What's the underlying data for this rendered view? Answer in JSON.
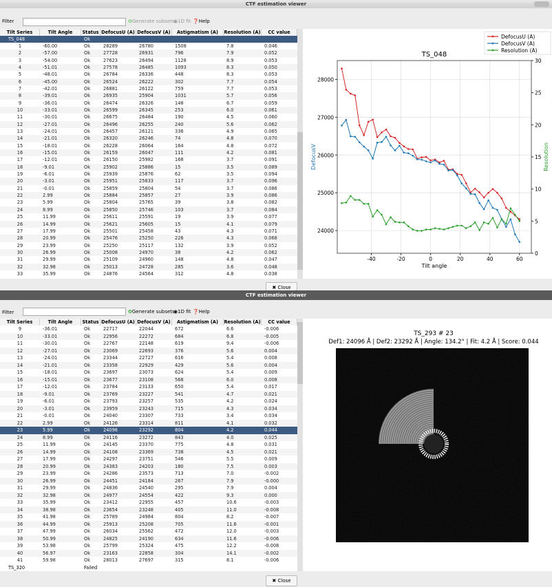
{
  "top": {
    "title": "CTF estimation viewer",
    "filter_label": "Filter",
    "toolbar": [
      "Generate subsets",
      "1D fit",
      "Help"
    ],
    "table": {
      "columns": [
        "Tilt Series",
        "Tilt Angle",
        "Status",
        "DefocusU (A)",
        "DefocusV (A)",
        "Astigmatism (A)",
        "Resolution (A)",
        "CC value"
      ],
      "group": "TS_048",
      "group_status": "Ok",
      "rows": [
        [
          "1",
          "-60.00",
          "Ok",
          "28289",
          "26780",
          "1508",
          "7.8",
          "0.046"
        ],
        [
          "2",
          "-57.00",
          "Ok",
          "27728",
          "26931",
          "796",
          "7.9",
          "0.052"
        ],
        [
          "3",
          "-54.00",
          "Ok",
          "27623",
          "26494",
          "1128",
          "8.9",
          "0.053"
        ],
        [
          "4",
          "-51.01",
          "Ok",
          "27578",
          "26485",
          "1093",
          "8.3",
          "0.050"
        ],
        [
          "5",
          "-48.01",
          "Ok",
          "26784",
          "26336",
          "448",
          "8.3",
          "0.053"
        ],
        [
          "6",
          "-45.00",
          "Ok",
          "26524",
          "26222",
          "302",
          "7.7",
          "0.054"
        ],
        [
          "7",
          "-42.01",
          "Ok",
          "26881",
          "26122",
          "759",
          "7.7",
          "0.053"
        ],
        [
          "8",
          "-39.01",
          "Ok",
          "26935",
          "25904",
          "1031",
          "5.7",
          "0.056"
        ],
        [
          "9",
          "-36.01",
          "Ok",
          "26474",
          "26326",
          "148",
          "6.7",
          "0.059"
        ],
        [
          "10",
          "-33.01",
          "Ok",
          "26599",
          "26345",
          "253",
          "6.0",
          "0.061"
        ],
        [
          "11",
          "-30.01",
          "Ok",
          "26675",
          "26484",
          "190",
          "4.5",
          "0.060"
        ],
        [
          "12",
          "-27.01",
          "Ok",
          "26496",
          "26255",
          "240",
          "5.6",
          "0.062"
        ],
        [
          "13",
          "-24.01",
          "Ok",
          "26457",
          "26121",
          "336",
          "4.9",
          "0.065"
        ],
        [
          "14",
          "-21.01",
          "Ok",
          "26320",
          "26246",
          "74",
          "4.8",
          "0.070"
        ],
        [
          "15",
          "-18.01",
          "Ok",
          "26228",
          "26064",
          "164",
          "4.8",
          "0.072"
        ],
        [
          "16",
          "-15.01",
          "Ok",
          "26159",
          "26047",
          "111",
          "4.2",
          "0.081"
        ],
        [
          "17",
          "-12.01",
          "Ok",
          "26150",
          "25982",
          "168",
          "3.7",
          "0.091"
        ],
        [
          "18",
          "-9.01",
          "Ok",
          "25902",
          "25886",
          "15",
          "3.5",
          "0.089"
        ],
        [
          "19",
          "-6.01",
          "Ok",
          "25939",
          "25876",
          "62",
          "3.5",
          "0.094"
        ],
        [
          "20",
          "-3.01",
          "Ok",
          "25951",
          "25833",
          "117",
          "3.7",
          "0.096"
        ],
        [
          "21",
          "-0.01",
          "Ok",
          "25859",
          "25804",
          "54",
          "3.7",
          "0.086"
        ],
        [
          "22",
          "2.99",
          "Ok",
          "25884",
          "25857",
          "27",
          "3.9",
          "0.086"
        ],
        [
          "23",
          "5.99",
          "Ok",
          "25804",
          "25765",
          "39",
          "3.8",
          "0.082"
        ],
        [
          "24",
          "8.99",
          "Ok",
          "25850",
          "25746",
          "103",
          "3.7",
          "0.084"
        ],
        [
          "25",
          "11.99",
          "Ok",
          "25611",
          "25591",
          "19",
          "3.9",
          "0.077"
        ],
        [
          "26",
          "14.99",
          "Ok",
          "25621",
          "25605",
          "15",
          "4.1",
          "0.079"
        ],
        [
          "27",
          "17.99",
          "Ok",
          "25501",
          "25458",
          "43",
          "4.3",
          "0.071"
        ],
        [
          "28",
          "20.99",
          "Ok",
          "25476",
          "25250",
          "226",
          "4.3",
          "0.068"
        ],
        [
          "29",
          "23.99",
          "Ok",
          "25250",
          "25117",
          "132",
          "3.9",
          "0.052"
        ],
        [
          "30",
          "26.99",
          "Ok",
          "25008",
          "24970",
          "38",
          "4.2",
          "0.062"
        ],
        [
          "31",
          "29.99",
          "Ok",
          "25109",
          "24960",
          "148",
          "4.8",
          "0.047"
        ],
        [
          "32",
          "32.98",
          "Ok",
          "25013",
          "24728",
          "285",
          "3.6",
          "0.048"
        ],
        [
          "33",
          "35.99",
          "Ok",
          "24876",
          "24564",
          "312",
          "4.8",
          "0.038"
        ]
      ]
    },
    "close": "Close"
  },
  "chart_data": {
    "type": "line",
    "title": "TS_048",
    "x_label": "Tilt angle",
    "y_label": "DefocusV",
    "y2_label": "Resolution",
    "x": [
      -60,
      -57,
      -54,
      -51.01,
      -48.01,
      -45,
      -42.01,
      -39.01,
      -36.01,
      -33.01,
      -30.01,
      -27.01,
      -24.01,
      -21.01,
      -18.01,
      -15.01,
      -12.01,
      -9.01,
      -6.01,
      -3.01,
      -0.01,
      2.99,
      5.99,
      8.99,
      11.99,
      14.99,
      17.99,
      20.99,
      23.99,
      26.99,
      29.99,
      32.98,
      35.99,
      38.99,
      41.99,
      44.99,
      47.99,
      50.99,
      53.99,
      56.99,
      59.99
    ],
    "series": [
      {
        "name": "DefocusU (A)",
        "color": "#d62728",
        "values": [
          28289,
          27728,
          27623,
          27578,
          26784,
          26524,
          26881,
          26935,
          26474,
          26599,
          26675,
          26496,
          26457,
          26320,
          26228,
          26159,
          26150,
          25902,
          25939,
          25951,
          25859,
          25884,
          25804,
          25850,
          25611,
          25621,
          25501,
          25476,
          25250,
          25008,
          25109,
          25013,
          24876,
          25000,
          25100,
          25000,
          24850,
          24600,
          24500,
          24400,
          24300
        ]
      },
      {
        "name": "DefocusV (A)",
        "color": "#1f77b4",
        "values": [
          26780,
          26931,
          26494,
          26485,
          26336,
          26222,
          26122,
          25904,
          26326,
          26345,
          26484,
          26255,
          26121,
          26246,
          26064,
          26047,
          25982,
          25886,
          25876,
          25833,
          25804,
          25857,
          25765,
          25746,
          25591,
          25605,
          25458,
          25250,
          25117,
          24970,
          24960,
          24728,
          24564,
          24800,
          24600,
          24550,
          24300,
          24100,
          24300,
          23900,
          23700
        ]
      },
      {
        "name": "Resolution (A)",
        "color": "#2ca02c",
        "axis": "y2",
        "values": [
          7.8,
          7.9,
          8.9,
          8.3,
          8.3,
          7.7,
          7.7,
          5.7,
          6.7,
          6.0,
          4.5,
          5.6,
          4.9,
          4.8,
          4.8,
          4.2,
          3.7,
          3.5,
          3.5,
          3.7,
          3.7,
          3.9,
          3.8,
          3.7,
          3.9,
          4.1,
          4.3,
          4.3,
          3.9,
          4.2,
          4.8,
          3.6,
          4.8,
          4.6,
          5.5,
          4.0,
          5.3,
          4.6,
          7.0,
          6.0,
          5.0
        ]
      }
    ],
    "xlim": [
      -63,
      68
    ],
    "xticks": [
      -40,
      -20,
      0,
      20,
      40,
      60
    ],
    "ylim": [
      23400,
      28500
    ],
    "yticks": [
      24000,
      25000,
      26000,
      27000,
      28000
    ],
    "y2lim": [
      0,
      30
    ],
    "y2ticks": [
      0,
      5,
      10,
      15,
      20,
      25,
      30
    ],
    "grid": true,
    "legend": "upper right"
  },
  "bottom": {
    "title": "CTF estimation viewer",
    "filter_label": "Filter",
    "toolbar": [
      "Generate subsets",
      "1D fit",
      "Help"
    ],
    "table": {
      "columns": [
        "Tilt Series",
        "Tilt Angle",
        "Status",
        "DefocusU (A)",
        "DefocusV (A)",
        "Astigmatism (A)",
        "Resolution (A)",
        "CC value"
      ],
      "selected_row": 14,
      "rows": [
        [
          "9",
          "-36.01",
          "Ok",
          "22717",
          "22044",
          "672",
          "6.6",
          "-0.006"
        ],
        [
          "10",
          "-33.01",
          "Ok",
          "22956",
          "22272",
          "684",
          "6.8",
          "-0.005"
        ],
        [
          "11",
          "-30.01",
          "Ok",
          "22767",
          "22148",
          "619",
          "9.4",
          "-0.006"
        ],
        [
          "12",
          "-27.01",
          "Ok",
          "23069",
          "22693",
          "376",
          "5.6",
          "0.004"
        ],
        [
          "13",
          "-24.01",
          "Ok",
          "23344",
          "22727",
          "616",
          "5.4",
          "0.008"
        ],
        [
          "14",
          "-21.01",
          "Ok",
          "23358",
          "22929",
          "429",
          "5.6",
          "0.004"
        ],
        [
          "15",
          "-18.01",
          "Ok",
          "23697",
          "23073",
          "624",
          "5.4",
          "0.009"
        ],
        [
          "16",
          "-15.01",
          "Ok",
          "23677",
          "23108",
          "568",
          "6.0",
          "0.008"
        ],
        [
          "17",
          "-12.01",
          "Ok",
          "23784",
          "23133",
          "650",
          "5.4",
          "0.017"
        ],
        [
          "18",
          "-9.01",
          "Ok",
          "23769",
          "23227",
          "541",
          "4.7",
          "0.021"
        ],
        [
          "19",
          "-6.01",
          "Ok",
          "23793",
          "23257",
          "535",
          "4.2",
          "0.024"
        ],
        [
          "20",
          "-3.01",
          "Ok",
          "23959",
          "23243",
          "715",
          "4.3",
          "0.034"
        ],
        [
          "21",
          "-0.01",
          "Ok",
          "24040",
          "23307",
          "733",
          "3.4",
          "0.034"
        ],
        [
          "22",
          "2.99",
          "Ok",
          "24126",
          "23314",
          "811",
          "4.1",
          "0.032"
        ],
        [
          "23",
          "5.99",
          "Ok",
          "24096",
          "23292",
          "804",
          "4.2",
          "0.044"
        ],
        [
          "24",
          "8.99",
          "Ok",
          "24116",
          "23272",
          "843",
          "4.0",
          "0.025"
        ],
        [
          "25",
          "11.99",
          "Ok",
          "24145",
          "23370",
          "775",
          "4.8",
          "0.031"
        ],
        [
          "26",
          "14.99",
          "Ok",
          "24108",
          "23369",
          "738",
          "4.5",
          "0.021"
        ],
        [
          "27",
          "17.99",
          "Ok",
          "24297",
          "23751",
          "546",
          "5.5",
          "0.009"
        ],
        [
          "28",
          "20.99",
          "Ok",
          "24383",
          "24203",
          "180",
          "7.5",
          "0.003"
        ],
        [
          "29",
          "23.99",
          "Ok",
          "24286",
          "23573",
          "713",
          "7.0",
          "-0.002"
        ],
        [
          "30",
          "26.99",
          "Ok",
          "24451",
          "24184",
          "267",
          "7.9",
          "-0.000"
        ],
        [
          "31",
          "29.99",
          "Ok",
          "24836",
          "24540",
          "295",
          "7.9",
          "0.004"
        ],
        [
          "32",
          "32.98",
          "Ok",
          "24977",
          "24554",
          "422",
          "9.3",
          "0.000"
        ],
        [
          "33",
          "35.99",
          "Ok",
          "23412",
          "22955",
          "457",
          "10.6",
          "-0.003"
        ],
        [
          "34",
          "38.98",
          "Ok",
          "23654",
          "23248",
          "405",
          "11.0",
          "-0.008"
        ],
        [
          "35",
          "41.98",
          "Ok",
          "25789",
          "24984",
          "804",
          "8.2",
          "-0.007"
        ],
        [
          "36",
          "44.99",
          "Ok",
          "25913",
          "25208",
          "705",
          "11.6",
          "-0.001"
        ],
        [
          "37",
          "47.99",
          "Ok",
          "26034",
          "25562",
          "472",
          "12.0",
          "-0.003"
        ],
        [
          "38",
          "50.99",
          "Ok",
          "24825",
          "24190",
          "634",
          "11.6",
          "-0.006"
        ],
        [
          "39",
          "53.98",
          "Ok",
          "25799",
          "25324",
          "475",
          "12.2",
          "-0.008"
        ],
        [
          "40",
          "56.97",
          "Ok",
          "23163",
          "22858",
          "304",
          "14.1",
          "-0.002"
        ],
        [
          "41",
          "59.98",
          "Ok",
          "28013",
          "27697",
          "315",
          "8.1",
          "-0.006"
        ]
      ],
      "next_group": "TS_320",
      "next_group_status": "Failed"
    },
    "image": {
      "title": "TS_293 # 23",
      "caption": "Def1: 24096 Å | Def2: 23292 Å | Angle: 134.2° | Fit: 4.2 Å | Score: 0.044"
    },
    "close": "Close"
  }
}
